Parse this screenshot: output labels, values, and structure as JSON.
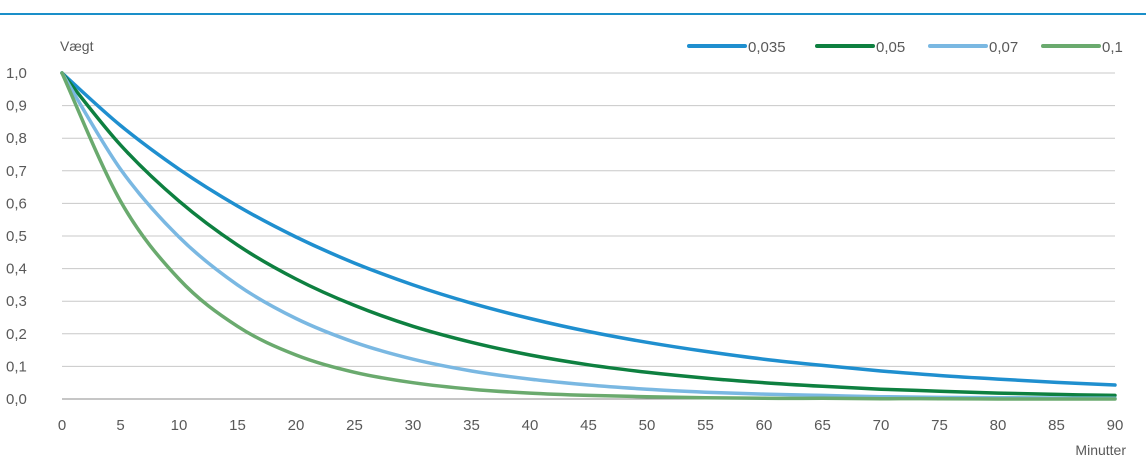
{
  "chart_data": {
    "type": "line",
    "title": "",
    "xlabel": "Minutter",
    "ylabel": "Vægt",
    "xlim": [
      0,
      90
    ],
    "ylim": [
      0,
      1
    ],
    "x_ticks": [
      "0",
      "5",
      "10",
      "15",
      "20",
      "25",
      "30",
      "35",
      "40",
      "45",
      "50",
      "55",
      "60",
      "65",
      "70",
      "75",
      "80",
      "85",
      "90"
    ],
    "y_ticks": [
      "0,0",
      "0,1",
      "0,2",
      "0,3",
      "0,4",
      "0,5",
      "0,6",
      "0,7",
      "0,8",
      "0,9",
      "1,0"
    ],
    "grid": "horizontal",
    "legend_position": "top-right",
    "x": [
      0,
      5,
      10,
      15,
      20,
      25,
      30,
      35,
      40,
      45,
      50,
      55,
      60,
      65,
      70,
      75,
      80,
      85,
      90
    ],
    "series": [
      {
        "name": "0,035",
        "color": "#1f8fcf",
        "values": [
          1.0,
          0.839,
          0.705,
          0.592,
          0.497,
          0.417,
          0.35,
          0.294,
          0.247,
          0.207,
          0.174,
          0.146,
          0.122,
          0.103,
          0.086,
          0.072,
          0.061,
          0.051,
          0.043
        ]
      },
      {
        "name": "0,05",
        "color": "#0e8040",
        "values": [
          1.0,
          0.779,
          0.607,
          0.472,
          0.368,
          0.287,
          0.223,
          0.174,
          0.135,
          0.105,
          0.082,
          0.064,
          0.05,
          0.039,
          0.03,
          0.024,
          0.018,
          0.014,
          0.011
        ]
      },
      {
        "name": "0,07",
        "color": "#7ab8e2",
        "values": [
          1.0,
          0.705,
          0.497,
          0.35,
          0.247,
          0.174,
          0.122,
          0.086,
          0.061,
          0.043,
          0.03,
          0.021,
          0.015,
          0.011,
          0.007,
          0.005,
          0.004,
          0.003,
          0.002
        ]
      },
      {
        "name": "0,1",
        "color": "#6aaa6e",
        "values": [
          1.0,
          0.607,
          0.368,
          0.223,
          0.135,
          0.082,
          0.05,
          0.03,
          0.018,
          0.011,
          0.007,
          0.004,
          0.002,
          0.002,
          0.001,
          0.001,
          0.0,
          0.0,
          0.0
        ]
      }
    ]
  }
}
